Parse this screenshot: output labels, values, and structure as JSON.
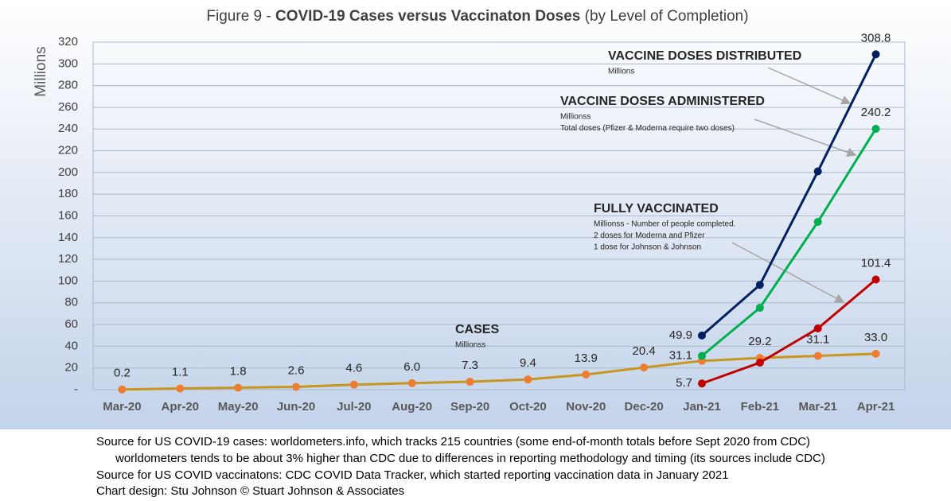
{
  "chart_data": {
    "type": "line",
    "title": {
      "lead": "Figure 9 -",
      "main": "COVID-19 Cases versus Vaccinaton Doses",
      "tail": "(by Level of Completion)"
    },
    "y_label": "Millions",
    "categories": [
      "Mar-20",
      "Apr-20",
      "May-20",
      "Jun-20",
      "Jul-20",
      "Aug-20",
      "Sep-20",
      "Oct-20",
      "Nov-20",
      "Dec-20",
      "Jan-21",
      "Feb-21",
      "Mar-21",
      "Apr-21"
    ],
    "ylim": [
      0,
      320
    ],
    "yticks": [
      {
        "value": 0,
        "label": "-"
      },
      20,
      40,
      60,
      80,
      100,
      120,
      140,
      160,
      180,
      200,
      220,
      240,
      260,
      280,
      300,
      320
    ],
    "grid": true,
    "series": [
      {
        "name": "CASES",
        "color": "#c8961e",
        "marker_color": "#ed7d31",
        "note": [
          "Millionss"
        ],
        "values": [
          0.2,
          1.1,
          1.8,
          2.6,
          4.6,
          6.0,
          7.3,
          9.4,
          13.9,
          20.4,
          26.5,
          29.2,
          31.1,
          33.0
        ],
        "value_labels": [
          "0.2",
          "1.1",
          "1.8",
          "2.6",
          "4.6",
          "6.0",
          "7.3",
          "9.4",
          "13.9",
          "20.4",
          null,
          "29.2",
          "31.1",
          "33.0"
        ]
      },
      {
        "name": "VACCINE DOSES DISTRIBUTED",
        "color": "#002060",
        "marker_color": "#002060",
        "note": [
          "Millions"
        ],
        "values": [
          null,
          null,
          null,
          null,
          null,
          null,
          null,
          null,
          null,
          null,
          49.9,
          96.5,
          201,
          308.8
        ],
        "value_labels": [
          null,
          null,
          null,
          null,
          null,
          null,
          null,
          null,
          null,
          null,
          "49.9",
          null,
          null,
          "308.8"
        ]
      },
      {
        "name": "VACCINE DOSES ADMINISTERED",
        "color": "#00b050",
        "marker_color": "#00b050",
        "note": [
          "Millionss",
          "Total doses (Pfizer & Moderna require two doses)"
        ],
        "values": [
          null,
          null,
          null,
          null,
          null,
          null,
          null,
          null,
          null,
          null,
          31.1,
          75.4,
          154.5,
          240.2
        ],
        "value_labels": [
          null,
          null,
          null,
          null,
          null,
          null,
          null,
          null,
          null,
          null,
          "31.1",
          null,
          null,
          "240.2"
        ]
      },
      {
        "name": "FULLY VACCINATED",
        "color": "#c00000",
        "marker_color": "#c00000",
        "note": [
          "Millionss - Number of people completed.",
          "2 doses for Moderna and Pfizer",
          "1 dose for Johnson & Johnson"
        ],
        "values": [
          null,
          null,
          null,
          null,
          null,
          null,
          null,
          null,
          null,
          null,
          5.7,
          24.9,
          56.4,
          101.4
        ],
        "value_labels": [
          null,
          null,
          null,
          null,
          null,
          null,
          null,
          null,
          null,
          null,
          "5.7",
          null,
          null,
          "101.4"
        ]
      }
    ]
  },
  "footer": [
    "Source for US COVID-19 cases: worldometers.info, which tracks 215 countries  (some end-of-month totals before Sept 2020 from CDC)",
    "worldometers tends to be about 3% higher than CDC due to differences in reporting methodology and timing (its sources include CDC)",
    "Source for US COVID vaccinatons: CDC COVID Data Tracker, which started reporting vaccination data in January 2021",
    "Chart design: Stu Johnson © Stuart Johnson & Associates"
  ]
}
